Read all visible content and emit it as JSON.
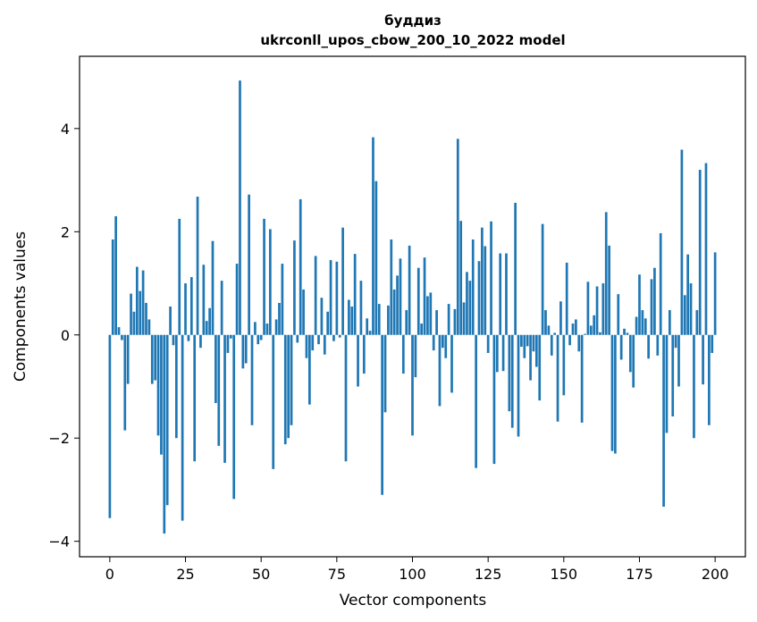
{
  "chart_data": {
    "type": "bar",
    "title_line1": "буддиз",
    "title_line2": "ukrconll_upos_cbow_200_10_2022 model",
    "xlabel": "Vector components",
    "ylabel": "Components values",
    "xlim": [
      -10,
      210
    ],
    "ylim": [
      -4.3,
      5.4
    ],
    "x_ticks": [
      0,
      25,
      50,
      75,
      100,
      125,
      150,
      175,
      200
    ],
    "y_ticks": [
      -4,
      -2,
      0,
      2,
      4
    ],
    "y_tick_labels": [
      "−4",
      "−2",
      "0",
      "2",
      "4"
    ],
    "bar_color": "#1f77b4",
    "grid": false,
    "values": [
      -3.55,
      1.85,
      2.3,
      0.15,
      -0.1,
      -1.85,
      -0.95,
      0.8,
      0.45,
      1.32,
      0.85,
      1.25,
      0.62,
      0.3,
      -0.95,
      -0.88,
      -1.95,
      -2.32,
      -3.85,
      -3.3,
      0.55,
      -0.2,
      -2.0,
      2.25,
      -3.6,
      1.0,
      -0.12,
      1.12,
      -2.45,
      2.68,
      -0.25,
      1.36,
      0.27,
      0.52,
      1.82,
      -1.32,
      -2.15,
      1.05,
      -2.48,
      -0.35,
      -0.07,
      -3.18,
      1.38,
      4.93,
      -0.65,
      -0.55,
      2.72,
      -1.75,
      0.25,
      -0.18,
      -0.1,
      2.25,
      0.22,
      2.05,
      -2.6,
      0.3,
      0.62,
      1.38,
      -2.12,
      -2.0,
      -1.75,
      1.83,
      -0.15,
      2.63,
      0.88,
      -0.45,
      -1.35,
      -0.3,
      1.53,
      -0.18,
      0.72,
      -0.38,
      0.45,
      1.45,
      -0.12,
      1.42,
      -0.05,
      2.08,
      -2.45,
      0.68,
      0.55,
      1.57,
      -1.0,
      1.05,
      -0.75,
      0.32,
      0.08,
      3.83,
      2.98,
      0.6,
      -3.1,
      -1.5,
      0.57,
      1.85,
      0.88,
      1.15,
      1.48,
      -0.75,
      0.48,
      1.73,
      -1.95,
      -0.82,
      1.3,
      0.22,
      1.5,
      0.75,
      0.82,
      -0.3,
      0.48,
      -1.38,
      -0.25,
      -0.45,
      0.6,
      -1.12,
      0.5,
      3.8,
      2.21,
      0.63,
      1.22,
      1.05,
      1.85,
      -2.58,
      1.43,
      2.08,
      1.72,
      -0.35,
      2.2,
      -2.5,
      -0.72,
      1.58,
      -0.7,
      1.58,
      -1.48,
      -1.8,
      2.56,
      -1.97,
      -0.23,
      -0.45,
      -0.22,
      -0.88,
      -0.32,
      -0.62,
      -1.27,
      2.15,
      0.48,
      0.18,
      -0.4,
      0.04,
      -1.68,
      0.65,
      -1.17,
      1.4,
      -0.2,
      0.22,
      0.3,
      -0.32,
      -1.7,
      0.02,
      1.03,
      0.18,
      0.38,
      0.94,
      0.05,
      1.0,
      2.38,
      1.73,
      -2.25,
      -2.3,
      0.79,
      -0.48,
      0.12,
      0.04,
      -0.72,
      -1.02,
      0.35,
      1.17,
      0.48,
      0.32,
      -0.46,
      1.08,
      1.3,
      -0.4,
      1.97,
      -3.33,
      -1.9,
      0.48,
      -1.58,
      -0.25,
      -1.0,
      3.59,
      0.77,
      1.56,
      1.0,
      -2.0,
      0.48,
      3.2,
      -0.96,
      3.33,
      -1.75,
      -0.35,
      1.6
    ]
  }
}
